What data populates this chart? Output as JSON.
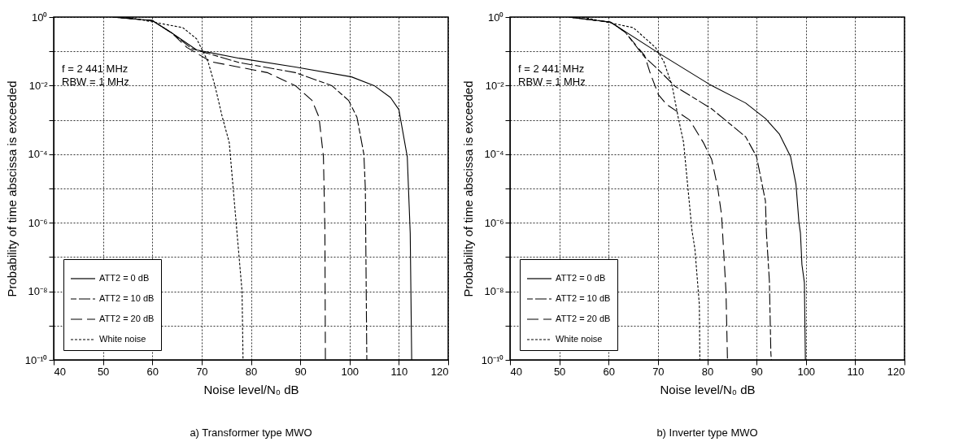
{
  "chart_data": [
    {
      "type": "line",
      "title": "a) Transformer type MWO",
      "xlabel": "Noise level/N₀  dB",
      "ylabel": "Probability of time abscissa is exceeded",
      "annotations": [
        "f = 2 441 MHz",
        "RBW = 1 MHz"
      ],
      "log": "y",
      "grid": true,
      "legend": "bottom left",
      "xlim": [
        40,
        120
      ],
      "xticks": [
        40,
        50,
        60,
        70,
        80,
        90,
        100,
        110,
        120
      ],
      "ylim": [
        1e-10,
        1
      ],
      "yticks": [
        {
          "value": 1,
          "label": "10⁰"
        },
        {
          "value": 0.1,
          "label": null
        },
        {
          "value": 0.01,
          "label": "10⁻²"
        },
        {
          "value": 0.001,
          "label": null
        },
        {
          "value": 0.0001,
          "label": "10⁻⁴"
        },
        {
          "value": 1e-05,
          "label": null
        },
        {
          "value": 1e-06,
          "label": "10⁻⁶"
        },
        {
          "value": 1e-07,
          "label": null
        },
        {
          "value": 1e-08,
          "label": "10⁻⁸"
        },
        {
          "value": 1e-09,
          "label": null
        },
        {
          "value": 1e-10,
          "label": "10⁻¹⁰"
        }
      ],
      "series": [
        {
          "name": "ATT2 = 0 dB",
          "color": "#000000",
          "line_style": "solid",
          "x": [
            52,
            60,
            64,
            69,
            77.6,
            89,
            100.4,
            105,
            108.3,
            110,
            111.7,
            112.3,
            112.6
          ],
          "values": [
            1,
            0.79,
            0.34,
            0.11,
            0.063,
            0.035,
            0.018,
            0.01,
            0.0045,
            0.002,
            8.5e-05,
            5e-07,
            1e-10
          ]
        },
        {
          "name": "ATT2 = 10 dB",
          "color": "#000000",
          "line_style": "dashed",
          "x": [
            52,
            60,
            64,
            68,
            77.6,
            89,
            96.4,
            99.8,
            101.5,
            102.9,
            103.2,
            103.5
          ],
          "values": [
            1,
            0.79,
            0.34,
            0.12,
            0.047,
            0.024,
            0.01,
            0.0037,
            0.0012,
            0.0001,
            1e-05,
            1e-10
          ]
        },
        {
          "name": "ATT2 = 20 dB",
          "color": "#000000",
          "line_style": "dashed",
          "x": [
            52,
            60,
            64,
            67,
            71.9,
            83.3,
            89,
            92.4,
            93.8,
            94.7,
            95,
            95.1
          ],
          "values": [
            1,
            0.79,
            0.34,
            0.13,
            0.05,
            0.024,
            0.01,
            0.0037,
            0.0012,
            8.5e-05,
            6e-07,
            1e-10
          ]
        },
        {
          "name": "White noise",
          "color": "#000000",
          "line_style": "dotted",
          "x": [
            54.8,
            66.2,
            69,
            71.3,
            72.7,
            74.2,
            75.6,
            77,
            78.2,
            78.4
          ],
          "values": [
            1,
            0.49,
            0.23,
            0.05,
            0.01,
            0.0012,
            0.00022,
            1e-06,
            1e-08,
            1e-10
          ]
        }
      ]
    },
    {
      "type": "line",
      "title": "b) Inverter type MWO",
      "xlabel": "Noise level/N₀  dB",
      "ylabel": "Probability of time abscissa is exceeded",
      "annotations": [
        "f = 2 441 MHz",
        "RBW = 1 MHz"
      ],
      "log": "y",
      "grid": true,
      "legend": "bottom left",
      "xlim": [
        40,
        120
      ],
      "xticks": [
        40,
        50,
        60,
        70,
        80,
        90,
        100,
        110,
        120
      ],
      "ylim": [
        1e-10,
        1
      ],
      "yticks": [
        {
          "value": 1,
          "label": "10⁰"
        },
        {
          "value": 0.1,
          "label": null
        },
        {
          "value": 0.01,
          "label": "10⁻²"
        },
        {
          "value": 0.001,
          "label": null
        },
        {
          "value": 0.0001,
          "label": "10⁻⁴"
        },
        {
          "value": 1e-05,
          "label": null
        },
        {
          "value": 1e-06,
          "label": "10⁻⁶"
        },
        {
          "value": 1e-07,
          "label": null
        },
        {
          "value": 1e-08,
          "label": "10⁻⁸"
        },
        {
          "value": 1e-09,
          "label": null
        },
        {
          "value": 1e-10,
          "label": "10⁻¹⁰"
        }
      ],
      "series": [
        {
          "name": "ATT2 = 0 dB",
          "color": "#000000",
          "line_style": "solid",
          "x": [
            51.9,
            60.4,
            70.1,
            80.4,
            87.8,
            91.8,
            94.6,
            96.9,
            98,
            98.6,
            98.9,
            99.2,
            99.7,
            99.9
          ],
          "values": [
            1,
            0.71,
            0.09,
            0.011,
            0.0031,
            0.0011,
            0.00039,
            8.5e-05,
            1.3e-05,
            1e-06,
            5e-07,
            6e-08,
            1.8e-08,
            1e-10
          ]
        },
        {
          "name": "ATT2 = 10 dB",
          "color": "#000000",
          "line_style": "dashed",
          "x": [
            51.9,
            60.4,
            63.3,
            67.3,
            70.1,
            73.5,
            80.9,
            87.8,
            90,
            91.8,
            92,
            92.6,
            92.9,
            93
          ],
          "values": [
            1,
            0.71,
            0.37,
            0.068,
            0.029,
            0.0095,
            0.0021,
            0.00032,
            8.5e-05,
            4.3e-06,
            5e-07,
            2e-08,
            1.6e-10,
            1e-10
          ]
        },
        {
          "name": "ATT2 = 20 dB",
          "color": "#000000",
          "line_style": "dashed",
          "x": [
            51.9,
            60.4,
            63.3,
            67.3,
            68.4,
            70.1,
            71.8,
            76.4,
            79.2,
            80.9,
            82.1,
            82.9,
            83.8,
            84.1
          ],
          "values": [
            1,
            0.71,
            0.37,
            0.075,
            0.024,
            0.0054,
            0.0028,
            0.001,
            0.00022,
            7e-05,
            1.1e-05,
            1.7e-06,
            1e-08,
            1e-10
          ]
        },
        {
          "name": "White noise",
          "color": "#000000",
          "line_style": "dotted",
          "x": [
            54.7,
            65,
            69.5,
            71.2,
            72.9,
            74.1,
            75.2,
            76.9,
            77.5,
            78.4,
            78.5
          ],
          "values": [
            1,
            0.49,
            0.13,
            0.05,
            0.0095,
            0.0012,
            0.00022,
            6e-07,
            1.7e-07,
            4e-09,
            1e-10
          ]
        }
      ]
    }
  ]
}
